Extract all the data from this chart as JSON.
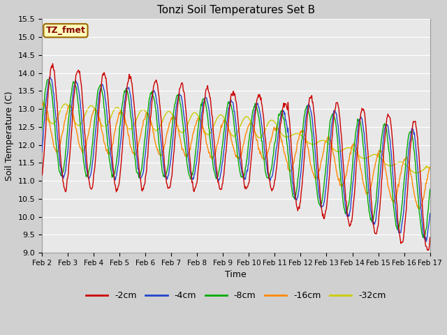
{
  "title": "Tonzi Soil Temperatures Set B",
  "xlabel": "Time",
  "ylabel": "Soil Temperature (C)",
  "ylim": [
    9.0,
    15.5
  ],
  "xtick_labels": [
    "Feb 2",
    "Feb 3",
    "Feb 4",
    "Feb 5",
    "Feb 6",
    "Feb 7",
    "Feb 8",
    "Feb 9",
    "Feb 10",
    "Feb 11",
    "Feb 12",
    "Feb 13",
    "Feb 14",
    "Feb 15",
    "Feb 16",
    "Feb 17"
  ],
  "series_colors": {
    "-2cm": "#cc0000",
    "-4cm": "#2244cc",
    "-8cm": "#00aa00",
    "-16cm": "#ff8800",
    "-32cm": "#cccc00"
  },
  "annotation_text": "TZ_fmet",
  "annotation_color": "#880000",
  "annotation_bg": "#ffffbb",
  "annotation_border": "#996600",
  "yticks": [
    9.0,
    9.5,
    10.0,
    10.5,
    11.0,
    11.5,
    12.0,
    12.5,
    13.0,
    13.5,
    14.0,
    14.5,
    15.0,
    15.5
  ],
  "figsize": [
    6.4,
    4.8
  ],
  "dpi": 100
}
